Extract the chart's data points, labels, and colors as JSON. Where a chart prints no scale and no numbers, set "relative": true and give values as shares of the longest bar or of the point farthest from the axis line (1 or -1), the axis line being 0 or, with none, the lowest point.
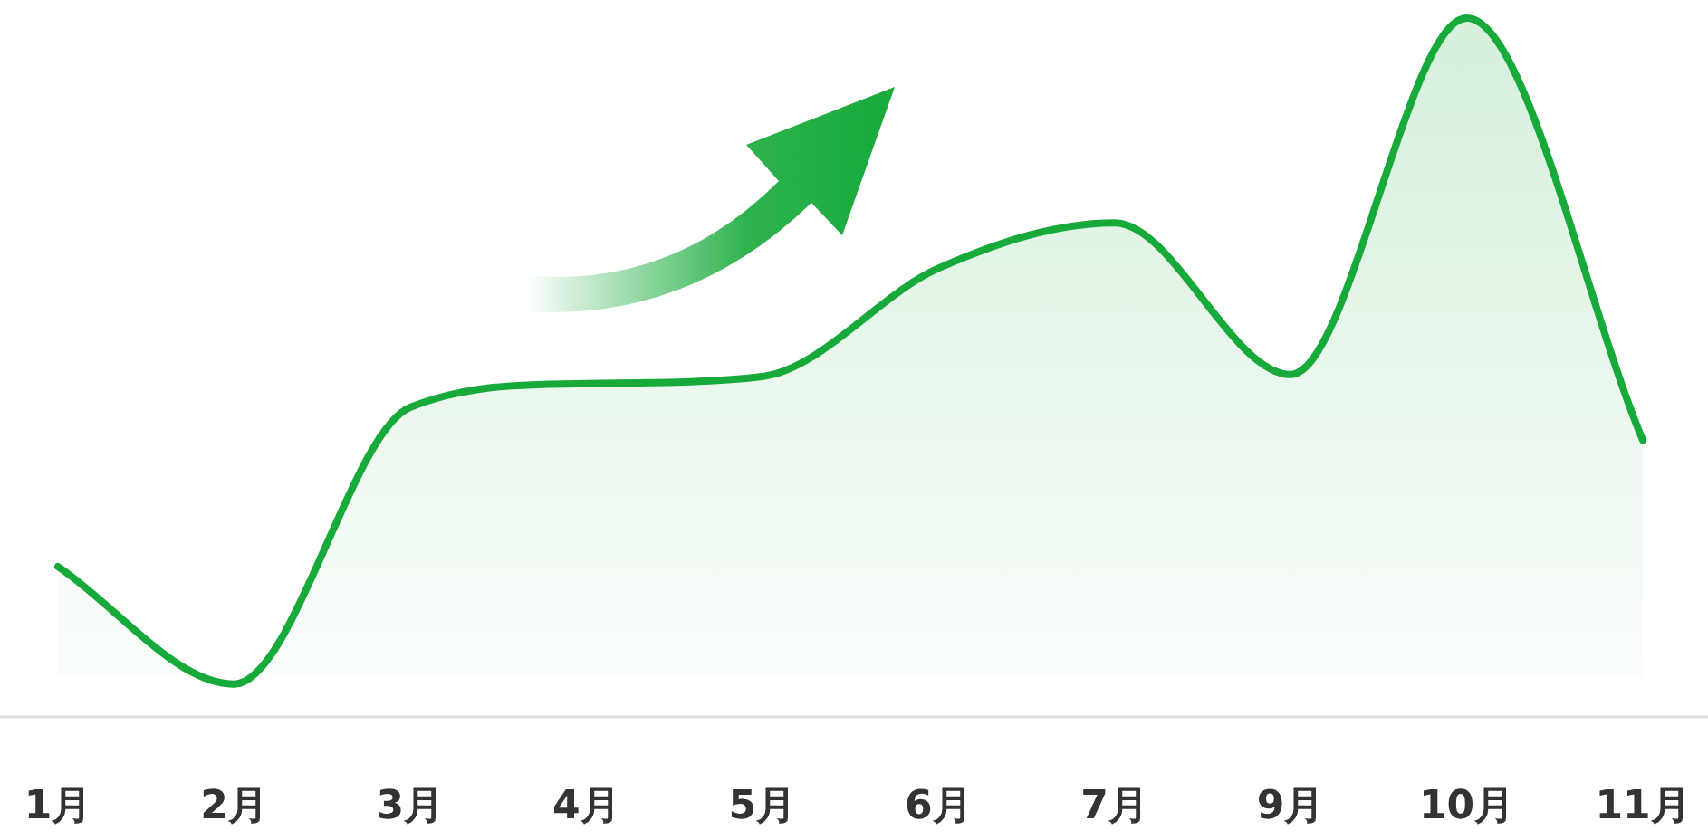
{
  "chart_data": {
    "type": "area",
    "relative": true,
    "categories": [
      "1月",
      "2月",
      "3月",
      "4月",
      "5月",
      "6月",
      "7月",
      "9月",
      "10月",
      "11月"
    ],
    "series": [
      {
        "color": "#17aa3a",
        "values": [
          0.215,
          0.047,
          0.443,
          0.477,
          0.487,
          0.642,
          0.707,
          0.49,
          1,
          0.396
        ]
      }
    ]
  }
}
